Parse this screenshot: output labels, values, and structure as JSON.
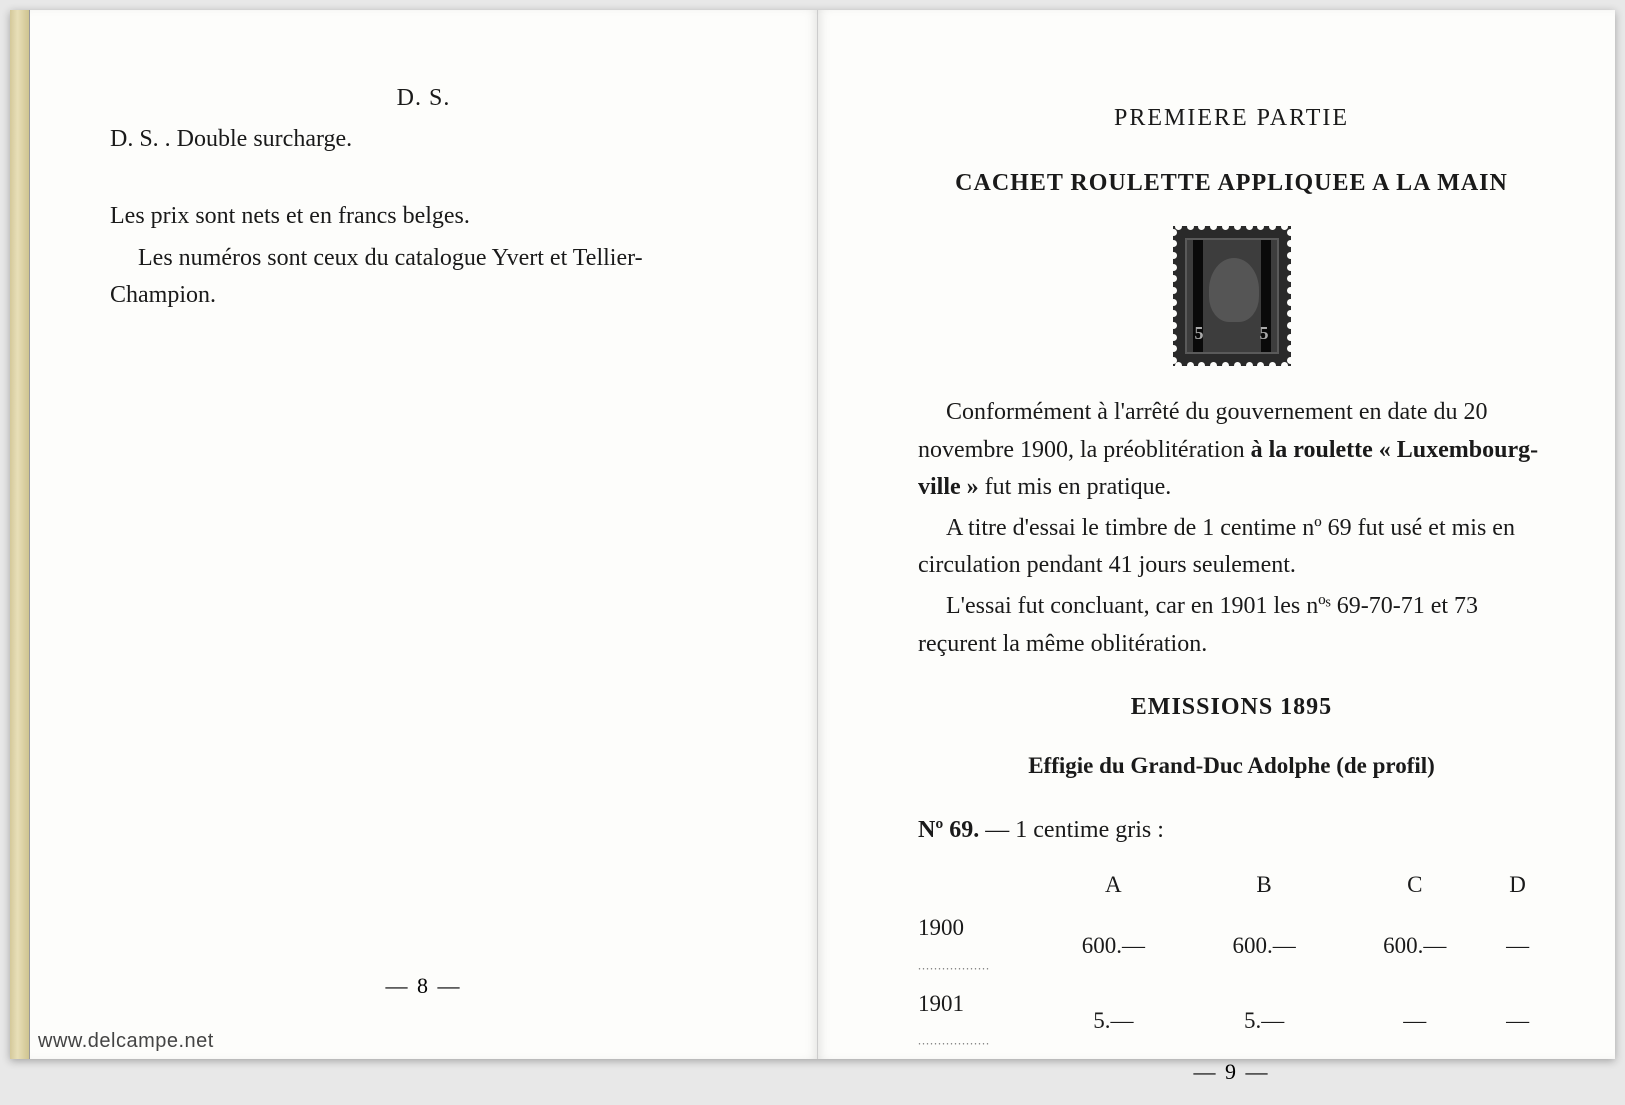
{
  "watermark": "www.delcampe.net",
  "left_page": {
    "abbrev_header": "D. S.",
    "abbrev_line": "D. S. . Double surcharge.",
    "price_note": "Les prix sont nets et en francs belges.",
    "catalog_note": "Les numéros sont ceux du catalogue Yvert et Tellier-Champion.",
    "page_number": "— 8 —"
  },
  "right_page": {
    "part_title": "PREMIERE PARTIE",
    "section_title": "CACHET ROULETTE APPLIQUEE A LA MAIN",
    "stamp_value": "5",
    "para1_pre": "Conformément à l'arrêté du gouvernement en date du 20 novembre 1900, la préoblitération ",
    "para1_bold1": "à la roulette « Luxembourg-ville »",
    "para1_post": " fut mis en pratique.",
    "para2": "A titre d'essai le timbre de 1 centime nº 69 fut usé et mis en circulation pendant 41 jours seulement.",
    "para3": "L'essai fut concluant, car en 1901 les nºˢ 69-70-71 et 73 reçurent la même oblitération.",
    "emissions_title": "EMISSIONS 1895",
    "subtitle": "Effigie du Grand-Duc Adolphe (de profil)",
    "catalog_label": "Nº 69.",
    "catalog_desc": " — 1 centime gris :",
    "table": {
      "headers": [
        "",
        "A",
        "B",
        "C",
        "D"
      ],
      "rows": [
        {
          "year": "1900",
          "a": "600.—",
          "b": "600.—",
          "c": "600.—",
          "d": "—"
        },
        {
          "year": "1901",
          "a": "5.—",
          "b": "5.—",
          "c": "—",
          "d": "—"
        }
      ]
    },
    "page_number": "— 9 —"
  },
  "colors": {
    "page_bg": "#fdfdfb",
    "text": "#1a1a1a",
    "stamp_dark": "#2a2a2a"
  }
}
